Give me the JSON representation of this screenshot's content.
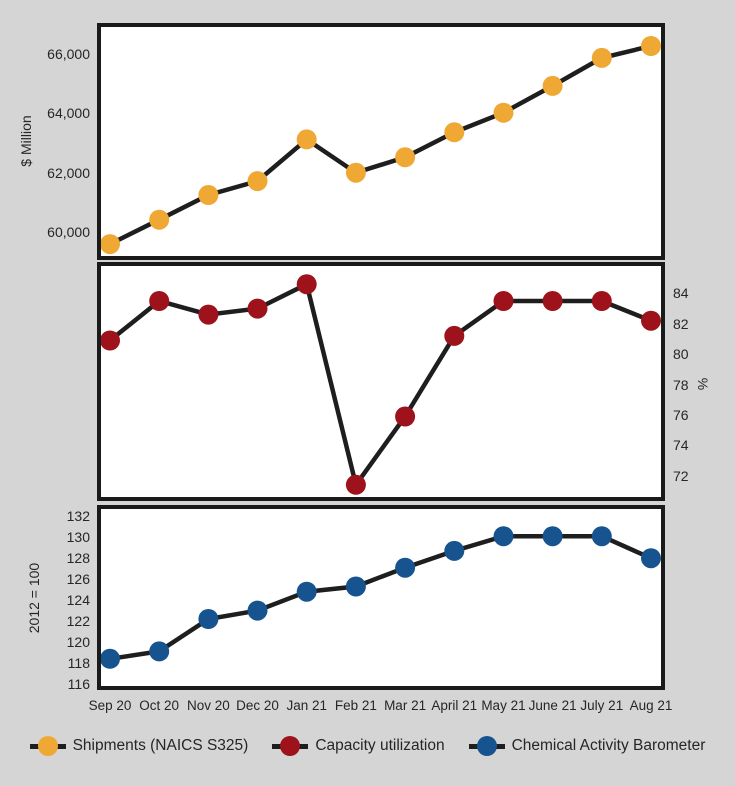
{
  "figure": {
    "background": "#d5d5d6",
    "line_color": "#1e1e1e",
    "border_color": "#1a1a1a",
    "text_color": "#262626"
  },
  "x_axis": {
    "categories": [
      "Sep 20",
      "Oct 20",
      "Nov 20",
      "Dec 20",
      "Jan 21",
      "Feb 21",
      "Mar 21",
      "April 21",
      "May 21",
      "June 21",
      "July 21",
      "Aug 21"
    ]
  },
  "chart_data": [
    {
      "type": "line",
      "title": "Shipments (NAICS S325)",
      "ylabel": "$ Million",
      "axis_side": "left",
      "color": "#F0A835",
      "categories": [
        "Sep 20",
        "Oct 20",
        "Nov 20",
        "Dec 20",
        "Jan 21",
        "Feb 21",
        "Mar 21",
        "April 21",
        "May 21",
        "June 21",
        "July 21",
        "Aug 21"
      ],
      "values": [
        59600,
        60420,
        61250,
        61720,
        63120,
        62000,
        62520,
        63360,
        64020,
        64920,
        65860,
        66260
      ],
      "ylim": [
        59200,
        66900
      ],
      "yticks": [
        {
          "value": 66000,
          "label": "66,000"
        },
        {
          "value": 64000,
          "label": "64,000"
        },
        {
          "value": 62000,
          "label": "62,000"
        },
        {
          "value": 60000,
          "label": "60,000"
        }
      ],
      "grid": false,
      "legend_position": "bottom"
    },
    {
      "type": "line",
      "title": "Capacity utilization",
      "ylabel": "%",
      "axis_side": "right",
      "color": "#9D121B",
      "categories": [
        "Sep 20",
        "Oct 20",
        "Nov 20",
        "Dec 20",
        "Jan 21",
        "Feb 21",
        "Mar 21",
        "April 21",
        "May 21",
        "June 21",
        "July 21",
        "Aug 21"
      ],
      "values": [
        80.9,
        83.5,
        82.6,
        83.0,
        84.6,
        71.4,
        75.9,
        81.2,
        83.5,
        83.5,
        83.5,
        82.2
      ],
      "ylim": [
        70.6,
        85.8
      ],
      "yticks": [
        {
          "value": 84,
          "label": "84"
        },
        {
          "value": 82,
          "label": "82"
        },
        {
          "value": 80,
          "label": "80"
        },
        {
          "value": 78,
          "label": "78"
        },
        {
          "value": 76,
          "label": "76"
        },
        {
          "value": 74,
          "label": "74"
        },
        {
          "value": 72,
          "label": "72"
        }
      ],
      "grid": false,
      "legend_position": "bottom"
    },
    {
      "type": "line",
      "title": "Chemical Activity Barometer",
      "ylabel": "2012 = 100",
      "axis_side": "left",
      "color": "#17548F",
      "categories": [
        "Sep 20",
        "Oct 20",
        "Nov 20",
        "Dec 20",
        "Jan 21",
        "Feb 21",
        "Mar 21",
        "April 21",
        "May 21",
        "June 21",
        "July 21",
        "Aug 21"
      ],
      "values": [
        118.4,
        119.1,
        122.2,
        123.0,
        124.8,
        125.3,
        127.1,
        128.7,
        130.1,
        130.1,
        130.1,
        128.0
      ],
      "ylim": [
        115.8,
        132.7
      ],
      "yticks": [
        {
          "value": 132,
          "label": "132"
        },
        {
          "value": 130,
          "label": "130"
        },
        {
          "value": 128,
          "label": "128"
        },
        {
          "value": 126,
          "label": "126"
        },
        {
          "value": 124,
          "label": "124"
        },
        {
          "value": 122,
          "label": "122"
        },
        {
          "value": 120,
          "label": "120"
        },
        {
          "value": 118,
          "label": "118"
        },
        {
          "value": 116,
          "label": "116"
        }
      ],
      "grid": false,
      "legend_position": "bottom"
    }
  ],
  "legend": {
    "items": [
      {
        "label": "Shipments (NAICS S325)",
        "color": "#F0A835"
      },
      {
        "label": "Capacity utilization",
        "color": "#9D121B"
      },
      {
        "label": "Chemical Activity Barometer",
        "color": "#17548F"
      }
    ]
  }
}
